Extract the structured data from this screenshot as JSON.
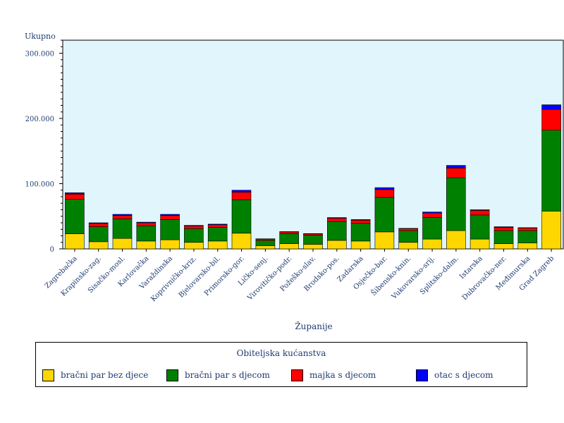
{
  "chart_data": {
    "type": "bar",
    "stacked": true,
    "ylabel": "Ukupno",
    "xlabel": "Županije",
    "ylim": [
      0,
      320000
    ],
    "yticks": [
      0,
      100000,
      200000,
      300000
    ],
    "ytick_labels": [
      "0",
      "100.000",
      "200.000",
      "300.000"
    ],
    "background": "#e0f6fc",
    "categories": [
      "Zagrebačka",
      "Krapinsko-zag.",
      "Sisačko-mosl.",
      "Karlovačka",
      "Varaždinska",
      "Koprivničko-kriz.",
      "Bjelovarsko-bil.",
      "Primorsko-gor.",
      "Ličko-senj.",
      "Virovitičko-podr.",
      "Požeško-slav.",
      "Brodsko-pos.",
      "Zadarska",
      "Osječko-bar.",
      "Šibensko-knin.",
      "Vukovarsko-srij.",
      "Splitsko-dalm.",
      "Istarska",
      "Dubrovačko-ner.",
      "Međimurska",
      "Grad Zagreb"
    ],
    "series": [
      {
        "name": "bračni par bez djece",
        "color": "#ffd700",
        "values": [
          23000,
          11000,
          16000,
          12000,
          14000,
          10000,
          12000,
          24000,
          5000,
          8000,
          7000,
          13000,
          12000,
          26000,
          10000,
          15000,
          28000,
          15000,
          8000,
          9000,
          58000
        ]
      },
      {
        "name": "bračni par s djecom",
        "color": "#008000",
        "values": [
          53000,
          23000,
          30000,
          23000,
          31000,
          21000,
          21000,
          51000,
          8000,
          15000,
          14000,
          29000,
          27000,
          53000,
          18000,
          33000,
          81000,
          37000,
          20000,
          19000,
          124000
        ]
      },
      {
        "name": "majka s djecom",
        "color": "#ff0000",
        "values": [
          8000,
          5000,
          5000,
          5000,
          6000,
          4000,
          4000,
          12000,
          2000,
          3000,
          2000,
          5000,
          5000,
          12000,
          3000,
          7000,
          15000,
          7000,
          5000,
          4000,
          32000
        ]
      },
      {
        "name": "otac s djecom",
        "color": "#0000ff",
        "values": [
          2000,
          1000,
          2000,
          1000,
          2000,
          1000,
          1000,
          3000,
          500,
          500,
          500,
          1000,
          1000,
          3000,
          500,
          1500,
          4000,
          1000,
          1000,
          500,
          7000
        ]
      }
    ]
  },
  "legend": {
    "title": "Obiteljska kućanstva"
  }
}
